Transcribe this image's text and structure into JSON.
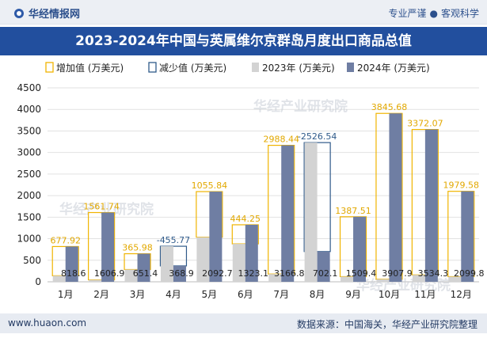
{
  "header": {
    "brand": "华经情报网",
    "tagline_left": "专业严谨",
    "tagline_dot": "●",
    "tagline_right": "客观科学"
  },
  "watermark": "华经产业研究院",
  "footer": {
    "left": "www.huaon.com",
    "right": "数据来源：中国海关，华经产业研究院整理"
  },
  "colors": {
    "series2023": "#d3d3d3",
    "series2024": "#6f7ea3",
    "increase": "#f0b400",
    "decrease": "#2f5a8a",
    "title_bar": "#224f9e"
  },
  "chart_data": {
    "type": "bar",
    "title": "2023-2024年中国与英属维尔京群岛月度出口商品总值",
    "categories": [
      "1月",
      "2月",
      "3月",
      "4月",
      "5月",
      "6月",
      "7月",
      "8月",
      "9月",
      "10月",
      "11月",
      "12月"
    ],
    "series": [
      {
        "name": "2023年 (万美元)",
        "values": [
          140,
          45,
          285,
          825,
          1035,
          880,
          180,
          3230,
          120,
          60,
          160,
          120
        ]
      },
      {
        "name": "2024年 (万美元)",
        "values": [
          818.6,
          1606.9,
          651.4,
          368.9,
          2092.7,
          1323.1,
          3166.8,
          702.1,
          1509.4,
          3907.9,
          3534.3,
          2099.8
        ]
      }
    ],
    "change": {
      "increase_name": "增加值 (万美元)",
      "decrease_name": "减少值 (万美元)",
      "labels": [
        "677.92",
        "1561.74",
        "365.98",
        "-455.77",
        "1055.84",
        "444.25",
        "2988.44",
        "-2526.54",
        "1387.51",
        "3845.68",
        "3372.07",
        "1979.58"
      ],
      "direction": [
        "up",
        "up",
        "up",
        "down",
        "up",
        "up",
        "up",
        "down",
        "up",
        "up",
        "up",
        "up"
      ]
    },
    "ylim": [
      0,
      4500
    ],
    "yticks": [
      0,
      500,
      1000,
      1500,
      2000,
      2500,
      3000,
      3500,
      4000,
      4500
    ],
    "grid": true,
    "legend_position": "top"
  }
}
